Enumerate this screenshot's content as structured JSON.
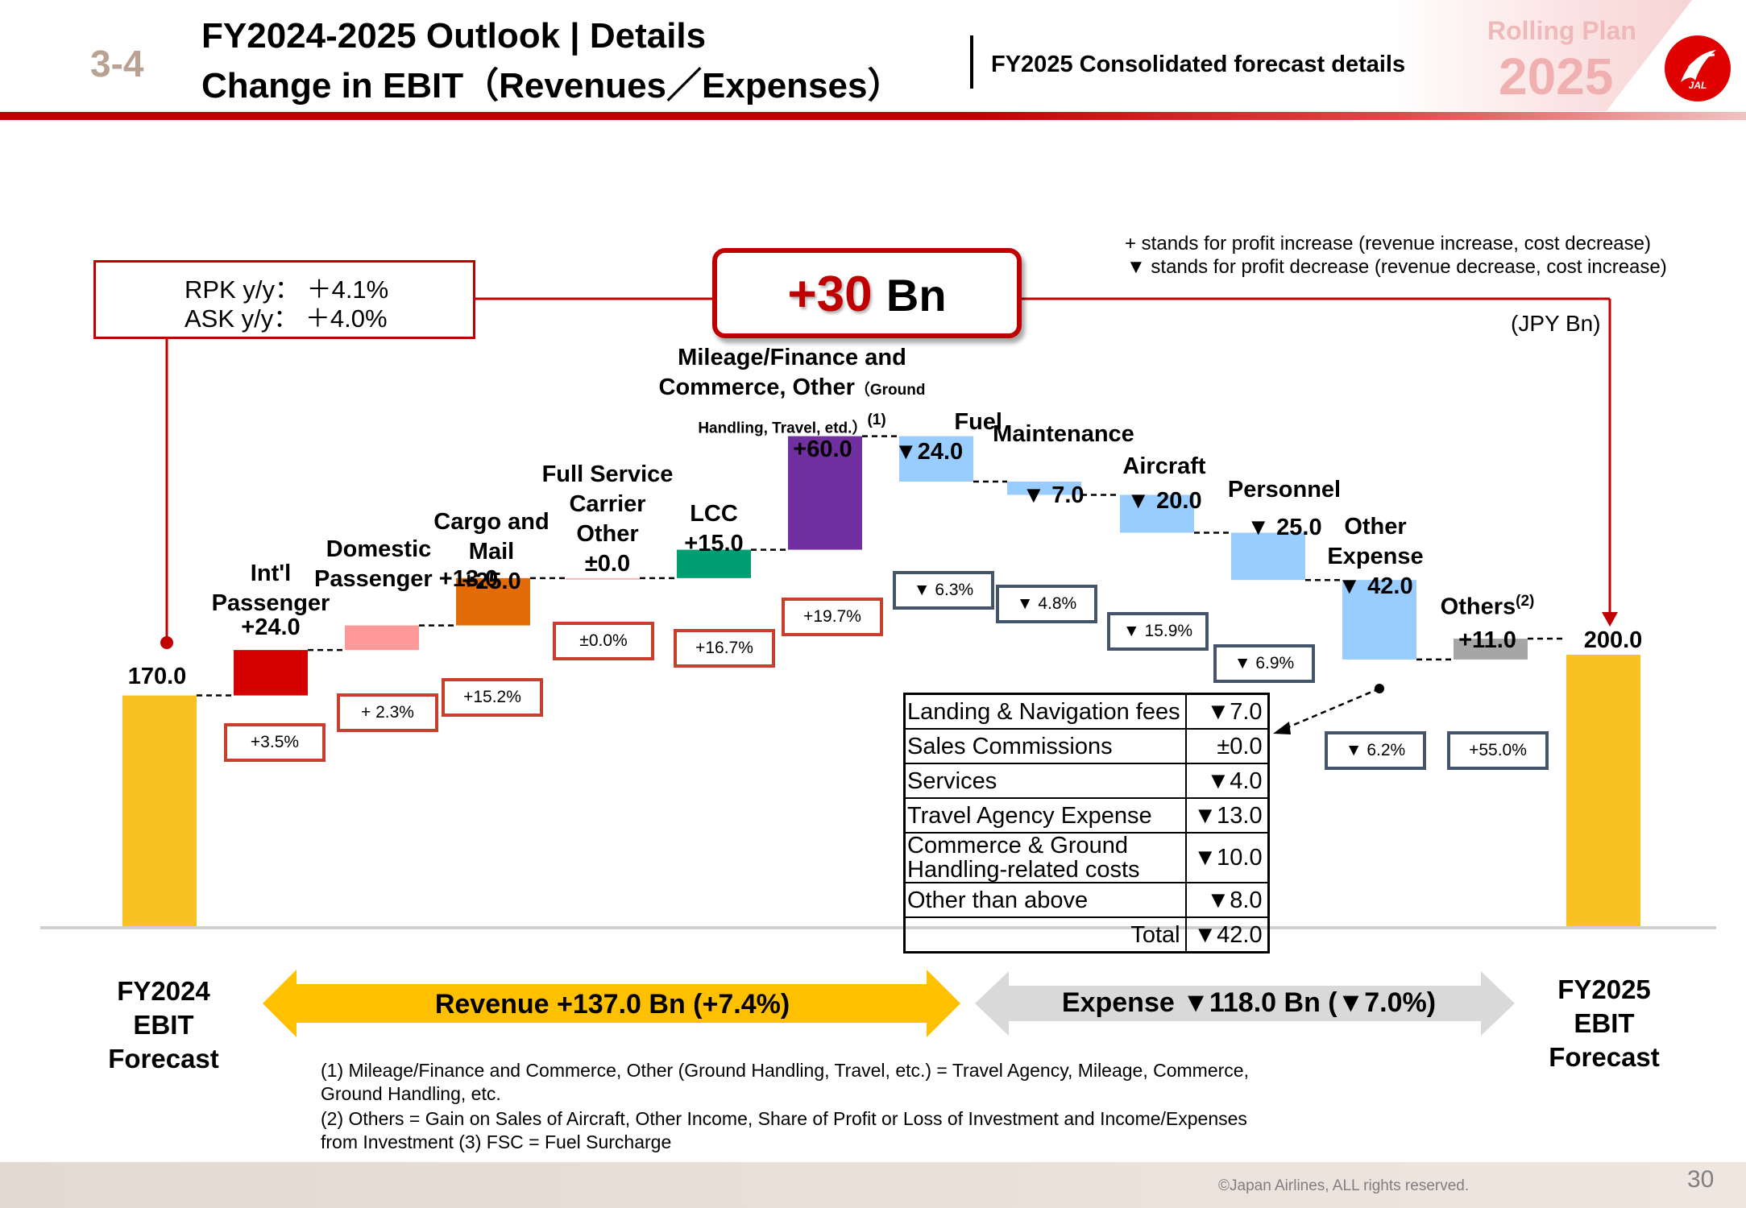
{
  "header": {
    "section_number": "3-4",
    "title_line1": "FY2024-2025 Outlook | Details",
    "title_line2": "Change in EBIT（Revenues／Expenses）",
    "subtitle": "FY2025 Consolidated forecast details",
    "plan_label": "Rolling Plan",
    "plan_year": "2025",
    "logo_text": "JAL"
  },
  "notes": {
    "plus": "+ stands for profit increase (revenue increase, cost decrease)",
    "minus": "▼ stands for profit decrease (revenue decrease, cost increase)",
    "unit": "(JPY Bn)"
  },
  "rpk_box": {
    "line1": "RPK y/y：  ＋4.1%",
    "line2": "ASK y/y：  ＋4.0%"
  },
  "change_box": {
    "value": "+30",
    "unit": "Bn"
  },
  "chart_data": {
    "type": "waterfall",
    "ylim": [
      0,
      200
    ],
    "steps": [
      {
        "label": "FY2024 EBIT Forecast",
        "kind": "total",
        "value": 170.0,
        "value_label": "170.0",
        "color": "#f9c121"
      },
      {
        "label": "Int'l Passenger",
        "kind": "delta",
        "value": 24.0,
        "value_label": "+24.0",
        "pct": "+3.5%",
        "color": "#d40000"
      },
      {
        "label": "Domestic Passenger",
        "kind": "delta",
        "value": 13.0,
        "value_label": "+13.0",
        "pct": "+ 2.3%",
        "color": "#ff9999"
      },
      {
        "label": "Cargo and Mail",
        "kind": "delta",
        "value": 25.0,
        "value_label": "+25.0",
        "pct": "+15.2%",
        "color": "#e36c09"
      },
      {
        "label": "Full Service Carrier Other",
        "kind": "delta",
        "value": 0.0,
        "value_label": "±0.0",
        "pct": "±0.0%",
        "color": "#f2b8b8"
      },
      {
        "label": "LCC",
        "kind": "delta",
        "value": 15.0,
        "value_label": "+15.0",
        "pct": "+16.7%",
        "color": "#009e73"
      },
      {
        "label": "Mileage/Finance and Commerce, Other (Ground Handling, Travel, etd.) (1)",
        "kind": "delta",
        "value": 60.0,
        "value_label": "+60.0",
        "pct": "+19.7%",
        "color": "#7030a0"
      },
      {
        "label": "Fuel",
        "kind": "delta",
        "value": -24.0,
        "value_label": "▼24.0",
        "pct": "▼ 6.3%",
        "color": "#99ccff"
      },
      {
        "label": "Maintenance",
        "kind": "delta",
        "value": -7.0,
        "value_label": "▼ 7.0",
        "pct": "▼ 4.8%",
        "color": "#99ccff"
      },
      {
        "label": "Aircraft",
        "kind": "delta",
        "value": -20.0,
        "value_label": "▼ 20.0",
        "pct": "▼ 15.9%",
        "color": "#99ccff"
      },
      {
        "label": "Personnel",
        "kind": "delta",
        "value": -25.0,
        "value_label": "▼ 25.0",
        "pct": "▼ 6.9%",
        "color": "#99ccff"
      },
      {
        "label": "Other Expense",
        "kind": "delta",
        "value": -42.0,
        "value_label": "▼ 42.0",
        "pct": "▼ 6.2%",
        "color": "#99ccff"
      },
      {
        "label": "Others (2)",
        "kind": "delta",
        "value": 11.0,
        "value_label": "+11.0",
        "pct": "+55.0%",
        "color": "#a6a6a6"
      },
      {
        "label": "FY2025 EBIT Forecast",
        "kind": "total",
        "value": 200.0,
        "value_label": "200.0",
        "color": "#f9c121"
      }
    ],
    "labels": {
      "intl": [
        "Int'l",
        "Passenger",
        "+24.0"
      ],
      "dom": [
        "Domestic",
        "Passenger  +13.0"
      ],
      "cargo": [
        "Cargo and",
        "Mail",
        "+25.0"
      ],
      "fsc": [
        "Full Service",
        "Carrier",
        "Other",
        "±0.0"
      ],
      "lcc": [
        "LCC",
        "+15.0"
      ],
      "mileage": [
        "Mileage/Finance and",
        "Commerce, Other",
        "（Ground",
        "Handling, Travel,  etd.）",
        "(1)",
        "+60.0"
      ],
      "fuel": [
        "Fuel",
        "▼24.0"
      ],
      "maint": [
        "Maintenance",
        "▼ 7.0"
      ],
      "aircraft": [
        "Aircraft",
        "▼ 20.0"
      ],
      "personnel": [
        "Personnel",
        "▼ 25.0"
      ],
      "other_exp": [
        "Other",
        "Expense",
        "▼ 42.0"
      ],
      "others": [
        "Others",
        "(2)",
        "+11.0"
      ],
      "start": "170.0",
      "end": "200.0"
    },
    "other_expense_breakdown": {
      "rows": [
        {
          "item": "Landing & Navigation fees",
          "value": "▼7.0"
        },
        {
          "item": "Sales Commissions",
          "value": "±0.0"
        },
        {
          "item": "Services",
          "value": "▼4.0"
        },
        {
          "item": "Travel Agency Expense",
          "value": "▼13.0"
        },
        {
          "item": "Commerce & Ground Handling-related costs",
          "value": "▼10.0"
        },
        {
          "item": "Other than above",
          "value": "▼8.0"
        }
      ],
      "total_label": "Total",
      "total_value": "▼42.0"
    },
    "revenue_arrow": "Revenue +137.0 Bn (+7.4%)",
    "expense_arrow": "Expense ▼118.0 Bn (▼7.0%)",
    "start_caption": [
      "FY2024",
      "EBIT",
      "Forecast"
    ],
    "end_caption": [
      "FY2025",
      "EBIT",
      "Forecast"
    ]
  },
  "footnotes": {
    "line1": "(1) Mileage/Finance and Commerce, Other (Ground Handling, Travel, etc.) = Travel Agency, Mileage, Commerce,",
    "line2": "Ground Handling, etc.",
    "line3": "(2) Others = Gain on Sales of Aircraft, Other Income, Share of Profit or Loss of Investment and Income/Expenses",
    "line4": "from Investment    (3) FSC = Fuel Surcharge"
  },
  "footer": {
    "copyright": "©Japan Airlines, ALL rights reserved.",
    "page_number": "30"
  },
  "colors": {
    "brand_red": "#c00000",
    "total_bar": "#f9c121",
    "expense_bar": "#99ccff",
    "revenue_arrow": "#ffc000",
    "expense_arrow": "#d9d9d9"
  }
}
